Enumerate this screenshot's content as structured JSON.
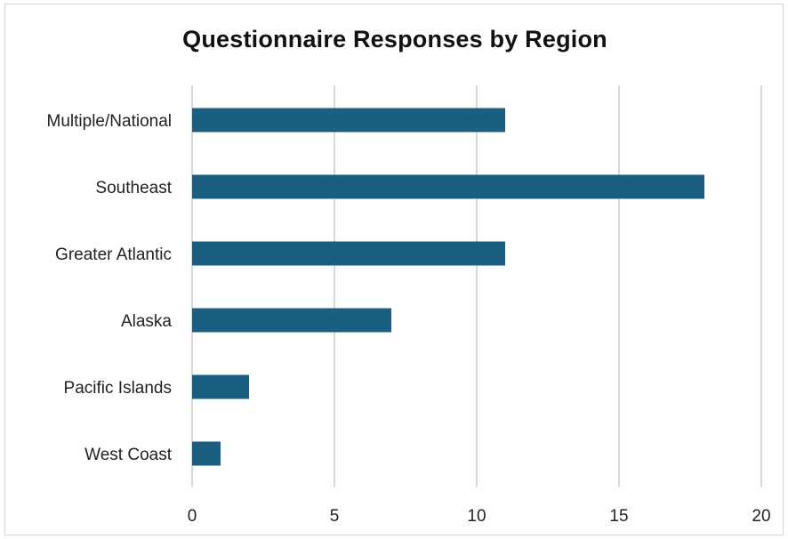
{
  "chart_data": {
    "type": "bar",
    "orientation": "horizontal",
    "title": "Questionnaire Responses by Region",
    "xlabel": "",
    "ylabel": "",
    "categories": [
      "Multiple/National",
      "Southeast",
      "Greater Atlantic",
      "Alaska",
      "Pacific Islands",
      "West Coast"
    ],
    "values": [
      11,
      18,
      11,
      7,
      2,
      1
    ],
    "xlim": [
      0,
      20
    ],
    "xticks": [
      0,
      5,
      10,
      15,
      20
    ],
    "xtick_labels": [
      "0",
      "5",
      "10",
      "15",
      "20"
    ],
    "grid": "vertical",
    "legend": "none",
    "bar_color": "#1a5f80",
    "gridline_color": "#d9d9d9"
  }
}
